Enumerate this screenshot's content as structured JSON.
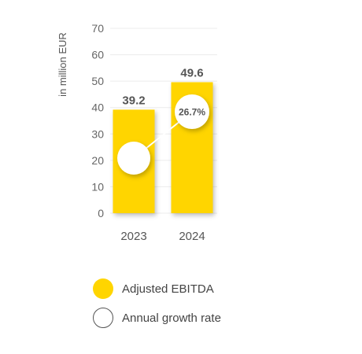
{
  "chart_data": {
    "type": "bar",
    "ylabel": "in million EUR",
    "ylim": [
      0,
      70
    ],
    "yticks": [
      0,
      10,
      20,
      30,
      40,
      50,
      60,
      70
    ],
    "categories": [
      "2023",
      "2024"
    ],
    "series": [
      {
        "name": "Adjusted EBITDA",
        "type": "bar",
        "values": [
          39.2,
          49.6
        ],
        "value_labels": [
          "39.2",
          "49.6"
        ],
        "color": "#FFD500"
      },
      {
        "name": "Annual growth rate",
        "type": "marker-line",
        "values": [
          null,
          26.7
        ],
        "value_labels": [
          "",
          "26.7%"
        ],
        "color": "#FFFFFF"
      }
    ],
    "grid": true,
    "legend_position": "bottom-left"
  },
  "legend": {
    "items": [
      {
        "label": "Adjusted EBITDA",
        "style": "filled",
        "color": "#FFD500"
      },
      {
        "label": "Annual growth rate",
        "style": "outline",
        "color": "#555555"
      }
    ]
  }
}
